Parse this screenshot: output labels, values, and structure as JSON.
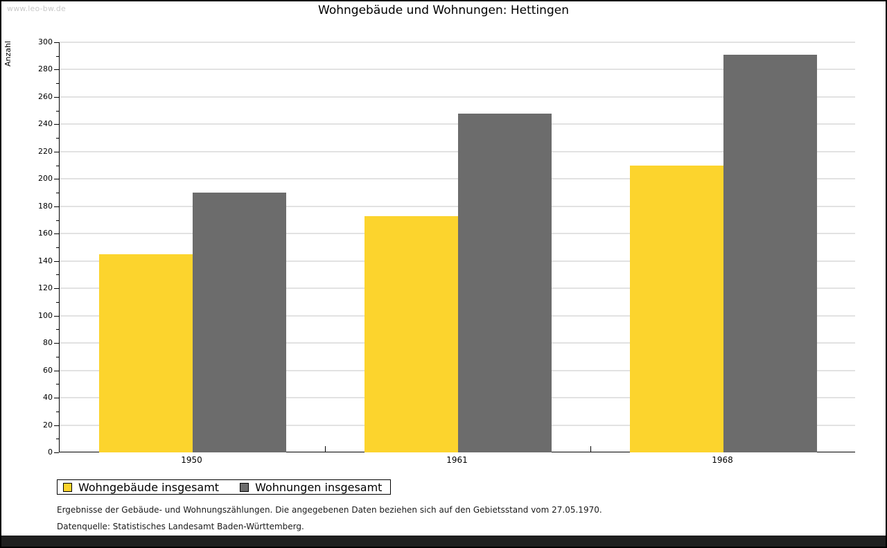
{
  "watermark": "www.leo-bw.de",
  "header": {
    "title": "Wohngebäude und Wohnungen: Hettingen"
  },
  "legend": {
    "items": [
      {
        "label": "Wohngebäude insgesamt",
        "color": "#fcd42d"
      },
      {
        "label": "Wohnungen insgesamt",
        "color": "#6c6c6c"
      }
    ]
  },
  "footnotes": {
    "line1": "Ergebnisse der Gebäude- und Wohnungszählungen. Die angegebenen Daten beziehen sich auf den Gebietsstand vom 27.05.1970.",
    "line2": "Datenquelle: Statistisches Landesamt Baden-Württemberg."
  },
  "chart_data": {
    "type": "bar",
    "title": "Wohngebäude und Wohnungen: Hettingen",
    "categories": [
      "1950",
      "1961",
      "1968"
    ],
    "series": [
      {
        "name": "Wohngebäude insgesamt",
        "color": "#fcd42d",
        "values": [
          145,
          173,
          210
        ]
      },
      {
        "name": "Wohnungen insgesamt",
        "color": "#6c6c6c",
        "values": [
          190,
          248,
          291
        ]
      }
    ],
    "xlabel": "",
    "ylabel": "Anzahl",
    "ylim": [
      0,
      300
    ],
    "ytick_step": 20,
    "minor_tick_step": 10,
    "grid": true,
    "grid_color": "#e2e2e2",
    "axis_color": "#000000",
    "legend_position": "bottom-left"
  }
}
